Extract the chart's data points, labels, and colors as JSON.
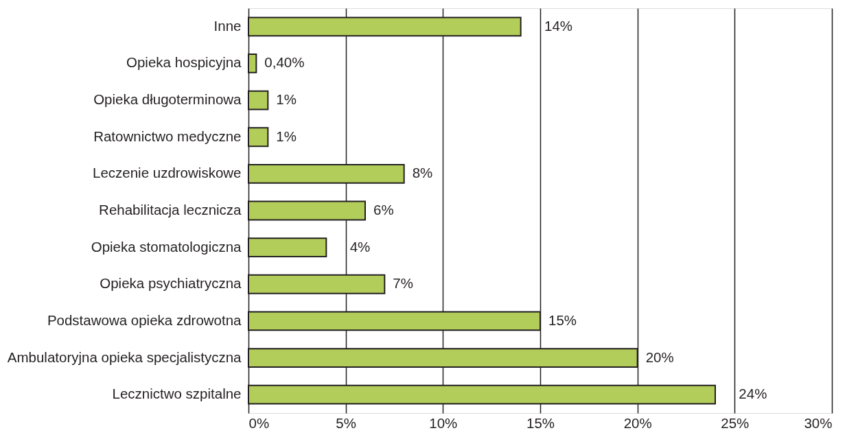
{
  "chart_data": {
    "type": "bar",
    "orientation": "horizontal",
    "categories": [
      "Inne",
      "Opieka hospicyjna",
      "Opieka długoterminowa",
      "Ratownictwo medyczne",
      "Leczenie uzdrowiskowe",
      "Rehabilitacja lecznicza",
      "Opieka stomatologiczna",
      "Opieka psychiatryczna",
      "Podstawowa opieka zdrowotna",
      "Ambulatoryjna opieka specjalistyczna",
      "Lecznictwo szpitalne"
    ],
    "values": [
      14,
      0.4,
      1,
      1,
      8,
      6,
      4,
      7,
      15,
      20,
      24
    ],
    "value_labels": [
      "14%",
      "0,40%",
      "1%",
      "1%",
      "8%",
      "6%",
      "4%",
      "7%",
      "15%",
      "20%",
      "24%"
    ],
    "color": "#b3cd5b",
    "xlim": [
      0,
      30
    ],
    "xticks": [
      {
        "value": 0,
        "label": "0%"
      },
      {
        "value": 5,
        "label": "5%"
      },
      {
        "value": 10,
        "label": "10%"
      },
      {
        "value": 15,
        "label": "15%"
      },
      {
        "value": 20,
        "label": "20%"
      },
      {
        "value": 25,
        "label": "25%"
      },
      {
        "value": 30,
        "label": "30%"
      }
    ],
    "grid": "x"
  }
}
